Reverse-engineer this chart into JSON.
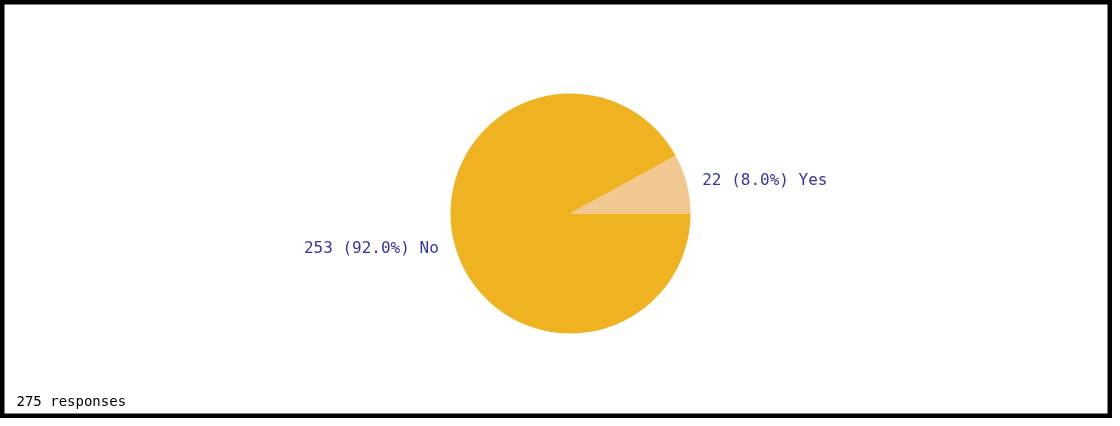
{
  "chart_data": {
    "type": "pie",
    "categories": [
      "No",
      "Yes"
    ],
    "values": [
      253,
      22
    ],
    "colors": [
      "#efb322",
      "#f0c890"
    ],
    "value_labels": [
      "253 (92.0%)",
      "22 (8.0%)"
    ],
    "annotations": [
      "275 responses"
    ]
  }
}
